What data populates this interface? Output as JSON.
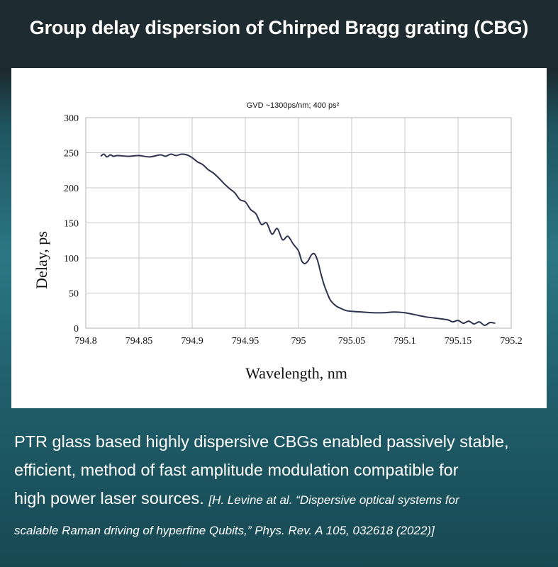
{
  "header": {
    "title": "Group delay dispersion of Chirped Bragg grating (CBG)"
  },
  "chart_data": {
    "type": "line",
    "annotation": "GVD ~1300ps/nm; 400 ps²",
    "xlabel": "Wavelength, nm",
    "ylabel": "Delay, ps",
    "xlim": [
      794.8,
      795.2
    ],
    "ylim": [
      0,
      300
    ],
    "x_ticks": [
      "794.8",
      "794.85",
      "794.9",
      "794.95",
      "795",
      "795.05",
      "795.1",
      "795.15",
      "795.2"
    ],
    "y_ticks": [
      "0",
      "50",
      "100",
      "150",
      "200",
      "250",
      "300"
    ],
    "grid": true,
    "line_color": "#2e3350",
    "series": [
      {
        "x": [
          794.814,
          794.817,
          794.82,
          794.823,
          794.826,
          794.83,
          794.84,
          794.85,
          794.86,
          794.87,
          794.875,
          794.88,
          794.885,
          794.89,
          794.895,
          794.9,
          794.905,
          794.91,
          794.915,
          794.92,
          794.925,
          794.93,
          794.935,
          794.94,
          794.945,
          794.95,
          794.955,
          794.96,
          794.965,
          794.97,
          794.975,
          794.98,
          794.985,
          794.99,
          794.995,
          795.0,
          795.003,
          795.006,
          795.009,
          795.012,
          795.015,
          795.018,
          795.021,
          795.024,
          795.027,
          795.03,
          795.035,
          795.04,
          795.045,
          795.05,
          795.06,
          795.07,
          795.08,
          795.09,
          795.1,
          795.11,
          795.12,
          795.13,
          795.14,
          795.145,
          795.15,
          795.155,
          795.16,
          795.165,
          795.17,
          795.175,
          795.18,
          795.185
        ],
        "y": [
          245,
          248,
          244,
          247,
          245,
          246,
          245,
          246,
          244,
          247,
          245,
          248,
          246,
          248,
          247,
          243,
          237,
          233,
          226,
          221,
          214,
          206,
          199,
          193,
          183,
          180,
          169,
          163,
          148,
          150,
          134,
          142,
          126,
          131,
          120,
          110,
          96,
          92,
          96,
          104,
          106,
          96,
          78,
          62,
          50,
          40,
          32,
          28,
          25,
          24,
          23,
          22,
          22,
          23,
          22,
          19,
          16,
          14,
          12,
          9,
          11,
          7,
          10,
          6,
          9,
          4,
          8,
          7
        ]
      }
    ]
  },
  "caption": {
    "line1": "PTR glass based highly dispersive CBGs enabled passively stable,",
    "line2": "efficient, method of fast amplitude modulation compatible for",
    "line3": "high power laser sources.",
    "citation_part1": "[H. Levine at al. “Dispersive optical systems for",
    "citation_part2": "scalable Raman driving of hyperfine Qubits,” Phys. Rev. A 105, 032618 (2022)]"
  }
}
